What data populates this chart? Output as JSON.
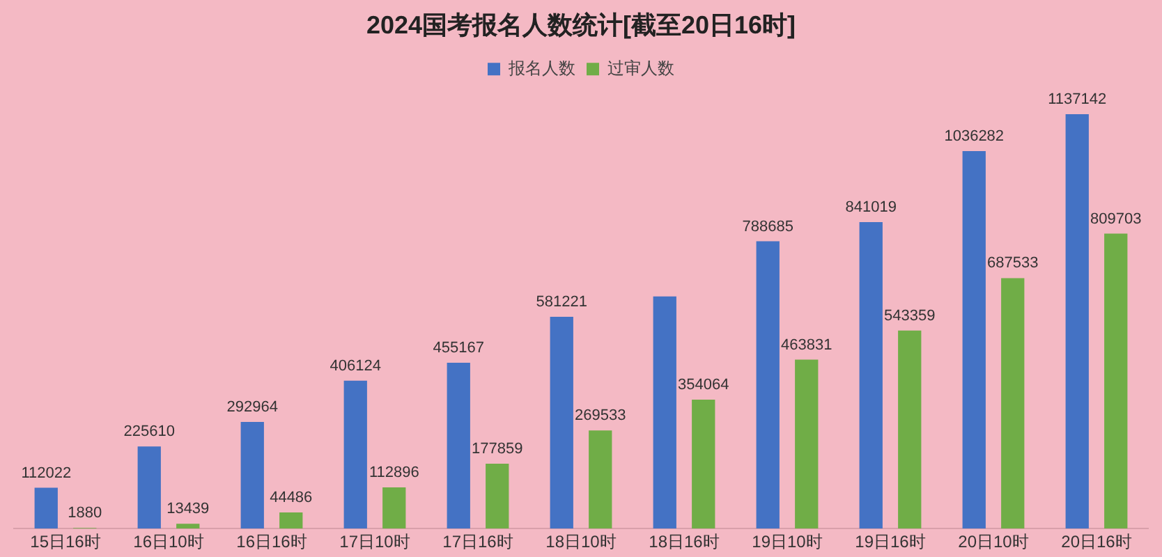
{
  "chart_data": {
    "type": "bar",
    "title": "2024国考报名人数统计[截至20日16时]",
    "categories": [
      "15日16时",
      "16日10时",
      "16日16时",
      "17日10时",
      "17日16时",
      "18日10时",
      "18日16时",
      "19日10时",
      "19日16时",
      "20日10时",
      "20日16时"
    ],
    "series": [
      {
        "name": "报名人数",
        "color": "#4472c4",
        "values": [
          112022,
          225610,
          292964,
          406124,
          455167,
          581221,
          637000,
          788685,
          841019,
          1036282,
          1137142
        ],
        "value_labels": [
          "112022",
          "225610",
          "292964",
          "406124",
          "455167",
          "581221",
          null,
          "788685",
          "841019",
          "1036282",
          "1137142"
        ]
      },
      {
        "name": "过审人数",
        "color": "#70ad47",
        "values": [
          1880,
          13439,
          44486,
          112896,
          177859,
          269533,
          354064,
          463831,
          543359,
          687533,
          809703
        ],
        "value_labels": [
          "1880",
          "13439",
          "44486",
          "112896",
          "177859",
          "269533",
          "354064",
          "463831",
          "543359",
          "687533",
          "809703"
        ]
      }
    ],
    "legend": "top",
    "grid": false
  }
}
